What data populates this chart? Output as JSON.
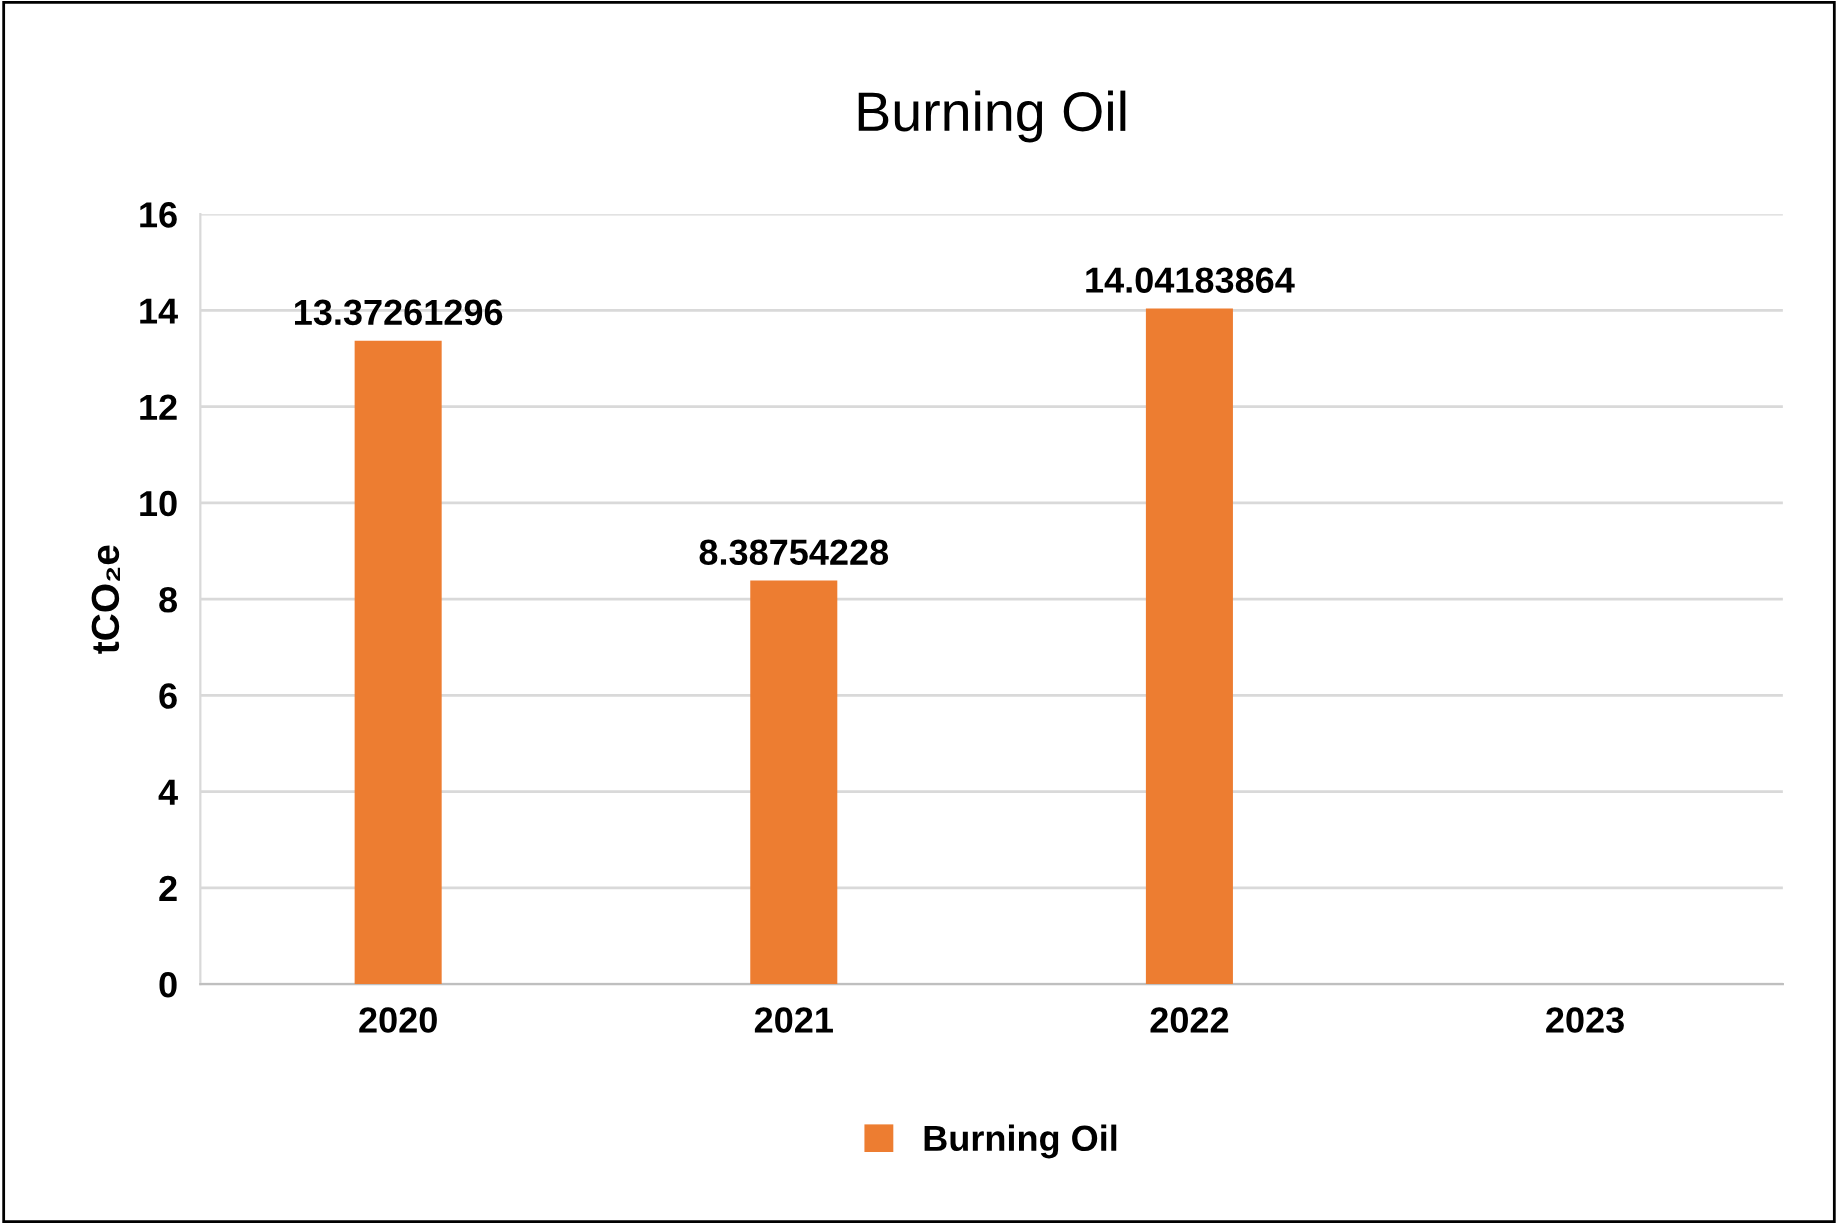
{
  "chart_data": {
    "type": "bar",
    "title": "Burning Oil",
    "ylabel": "tCO₂e",
    "categories": [
      "2020",
      "2021",
      "2022",
      "2023"
    ],
    "series": [
      {
        "name": "Burning Oil",
        "color": "#ed7d31",
        "values": [
          13.37261296,
          8.38754228,
          14.04183864,
          null
        ]
      }
    ],
    "ylim": [
      0,
      16
    ],
    "yticks": [
      0,
      2,
      4,
      6,
      8,
      10,
      12,
      14,
      16
    ],
    "grid": "y",
    "legend": "bottom",
    "data_labels": true
  }
}
